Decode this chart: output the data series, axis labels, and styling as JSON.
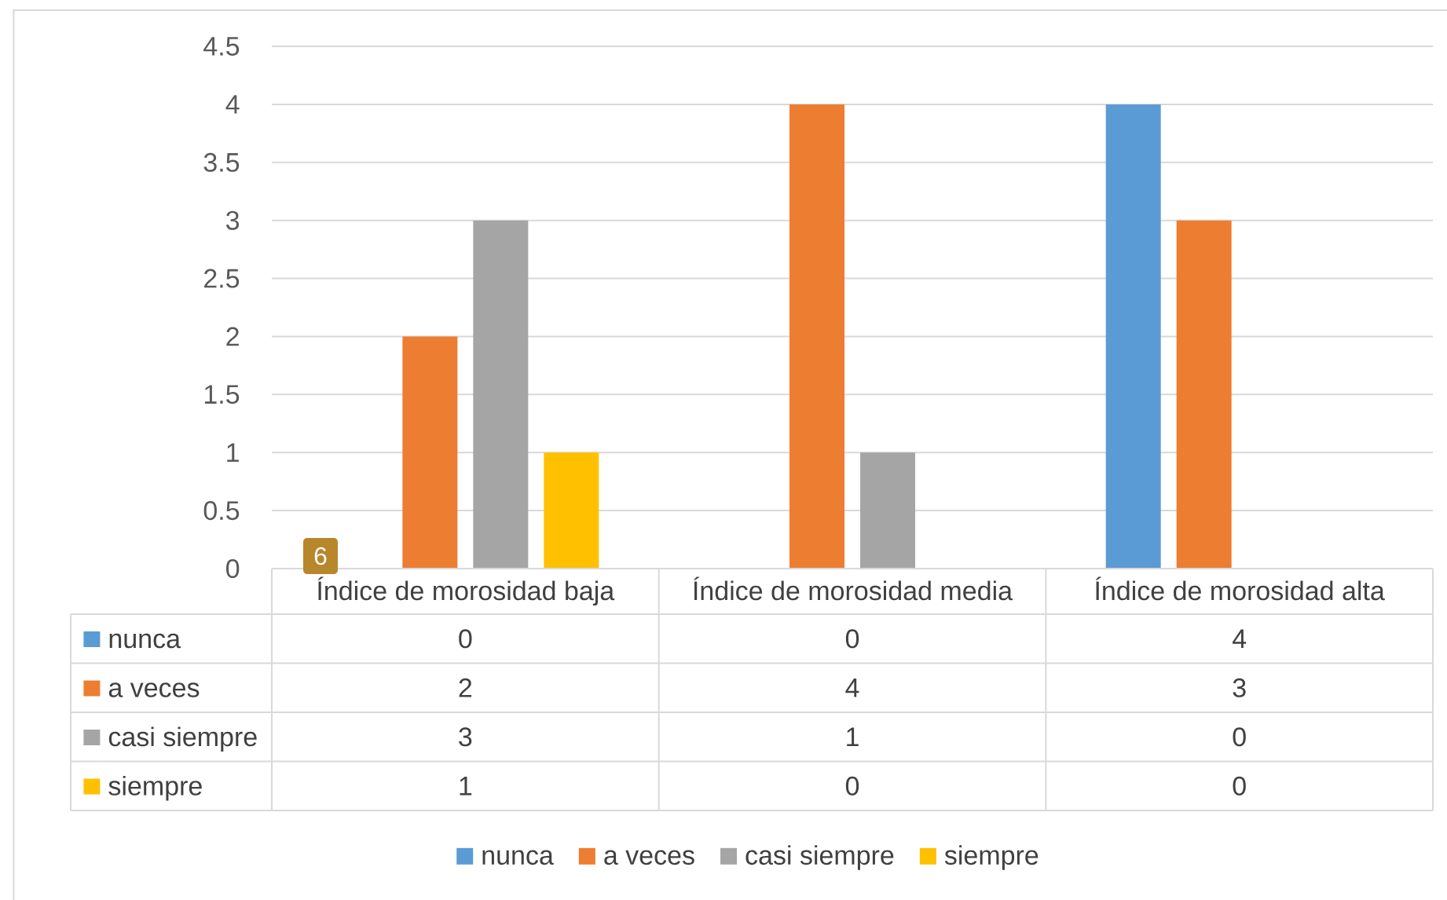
{
  "chart_data": {
    "type": "bar",
    "categories": [
      "Índice de morosidad baja",
      "Índice de morosidad media",
      "Índice de morosidad alta"
    ],
    "series": [
      {
        "name": "nunca",
        "color": "#5b9bd5",
        "values": [
          0,
          0,
          4
        ]
      },
      {
        "name": "a veces",
        "color": "#ed7d31",
        "values": [
          2,
          4,
          3
        ]
      },
      {
        "name": "casi siempre",
        "color": "#a5a5a5",
        "values": [
          3,
          1,
          0
        ]
      },
      {
        "name": "siempre",
        "color": "#ffc000",
        "values": [
          1,
          0,
          0
        ]
      }
    ],
    "ylim": [
      0,
      4.5
    ],
    "yticks": [
      0,
      0.5,
      1,
      1.5,
      2,
      2.5,
      3,
      3.5,
      4,
      4.5
    ],
    "grid": "y",
    "legend": "bottom",
    "data_labels": true,
    "annotations": [
      "6"
    ]
  }
}
